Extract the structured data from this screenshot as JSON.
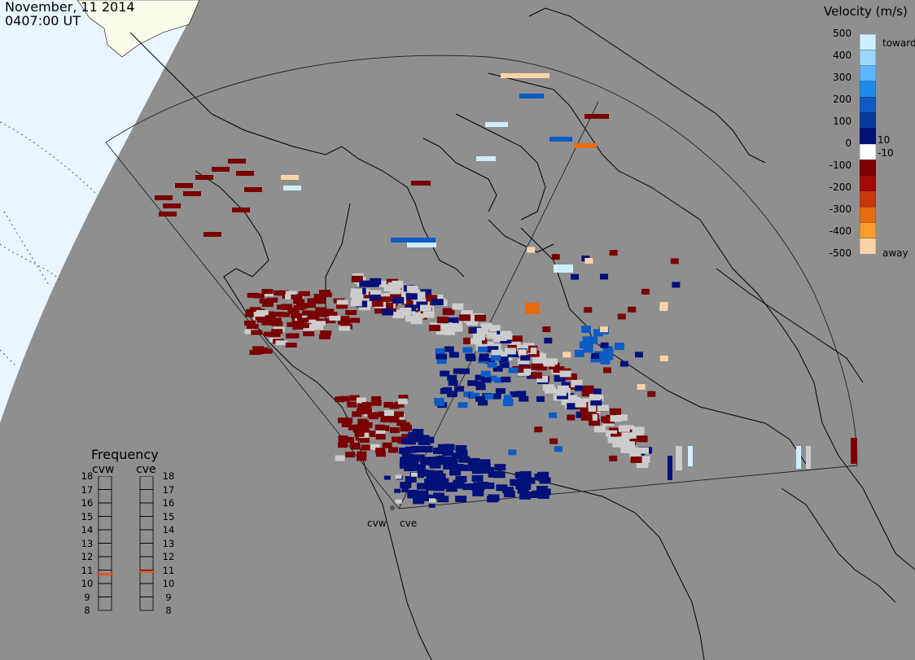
{
  "header": {
    "date": "November, 11 2014",
    "time": "0407:00 UT"
  },
  "colorbar": {
    "title": "Velocity (m/s)",
    "ticks": [
      "500",
      "400",
      "300",
      "200",
      "100",
      "10",
      "0",
      "-10",
      "-100",
      "-200",
      "-300",
      "-400",
      "-500"
    ],
    "toward_label": "toward",
    "away_label": "away",
    "colors": [
      "#cfeeff",
      "#9dd8ff",
      "#5ab7ff",
      "#1f8de8",
      "#0d5cc4",
      "#063a9c",
      "#02107a",
      "#ffffff",
      "#7a0000",
      "#a30a05",
      "#c8360b",
      "#e86a10",
      "#fb9c2e",
      "#ffd3a8"
    ]
  },
  "frequency": {
    "title": "Frequency",
    "stations": [
      {
        "name": "cvw",
        "value_mhz": 10.7
      },
      {
        "name": "cve",
        "value_mhz": 10.9
      }
    ],
    "scale": [
      "18",
      "17",
      "16",
      "15",
      "14",
      "13",
      "12",
      "11",
      "10",
      "9",
      "8"
    ],
    "marker_color": "#e0521a"
  },
  "radars": [
    "cvw",
    "cve"
  ],
  "map_colors": {
    "ocean": "#e8f6ff",
    "land_day": "#fbfbec",
    "night": "#8f8f8f",
    "coast": "#000000",
    "no_echo": "#cccccc"
  }
}
